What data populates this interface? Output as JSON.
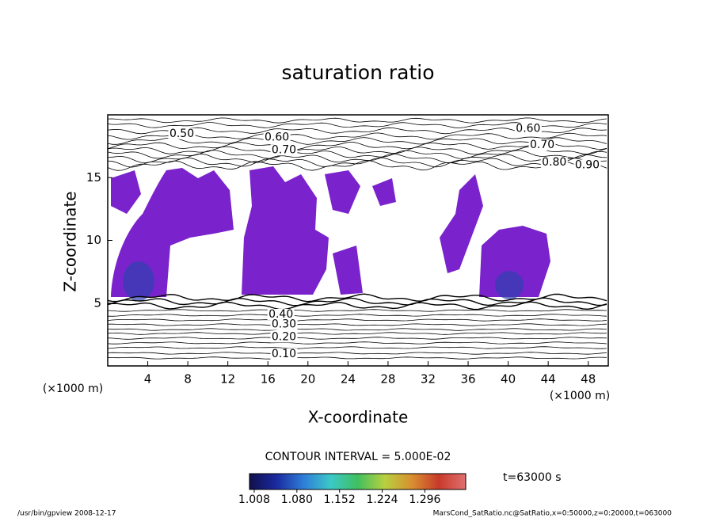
{
  "chart_data": {
    "type": "contour",
    "title": "saturation ratio",
    "x_label": "X-coordinate",
    "y_label": "Z-coordinate",
    "x_unit": "(×1000 m)",
    "y_unit": "(×1000 m)",
    "xlim": [
      0,
      50
    ],
    "xticks": [
      4,
      8,
      12,
      16,
      20,
      24,
      28,
      32,
      36,
      40,
      44,
      48
    ],
    "ylim": [
      0,
      20
    ],
    "yticks": [
      5,
      10,
      15
    ],
    "fill_color": "#7a22cc",
    "contour_labels": [
      {
        "label": "0.50",
        "x": 7.4,
        "z": 18.5
      },
      {
        "label": "0.60",
        "x": 16.9,
        "z": 18.2
      },
      {
        "label": "0.70",
        "x": 17.6,
        "z": 17.2
      },
      {
        "label": "0.60",
        "x": 42.0,
        "z": 18.9
      },
      {
        "label": "0.70",
        "x": 43.4,
        "z": 17.6
      },
      {
        "label": "0.80",
        "x": 44.6,
        "z": 16.2
      },
      {
        "label": "0.90",
        "x": 47.9,
        "z": 16.0
      },
      {
        "label": "0.40",
        "x": 17.3,
        "z": 4.1
      },
      {
        "label": "0.30",
        "x": 17.6,
        "z": 3.3
      },
      {
        "label": "0.20",
        "x": 17.6,
        "z": 2.3
      },
      {
        "label": "0.10",
        "x": 17.6,
        "z": 0.95
      }
    ],
    "contour_interval": "CONTOUR INTERVAL = 5.000E-02",
    "time_label": "t=63000 s",
    "colorbar": {
      "lim": [
        1.0,
        1.365
      ],
      "colors": [
        "#10104a",
        "#1a2aa0",
        "#2e7ed8",
        "#3cc8c8",
        "#40c060",
        "#b8d040",
        "#d89030",
        "#c83a2a",
        "#e07070"
      ],
      "ticks": [
        {
          "value": 1.008,
          "label": "1.008"
        },
        {
          "value": 1.08,
          "label": "1.080"
        },
        {
          "value": 1.152,
          "label": "1.152"
        },
        {
          "value": 1.224,
          "label": "1.224"
        },
        {
          "value": 1.296,
          "label": "1.296"
        }
      ]
    },
    "footer_left": "/usr/bin/gpview  2008-12-17",
    "footer_right": "MarsCond_SatRatio.nc@SatRatio,x=0:50000,z=0:20000,t=063000"
  }
}
